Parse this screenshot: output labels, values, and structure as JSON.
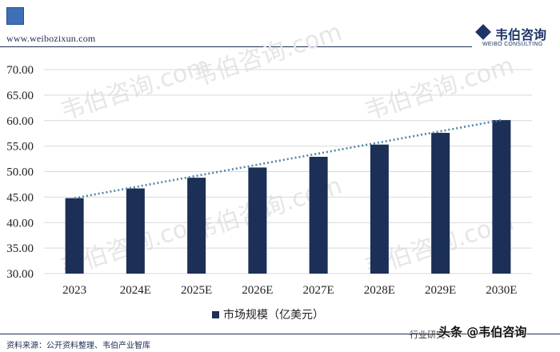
{
  "header": {
    "site_url": "www.weibozixun.com",
    "logo_cn": "韦伯咨询",
    "logo_en": "WEIBO CONSULTING",
    "accent_color": "#3f6fb8"
  },
  "watermark": "韦伯咨询.com",
  "chart_data": {
    "type": "bar",
    "categories": [
      "2023",
      "2024E",
      "2025E",
      "2026E",
      "2027E",
      "2028E",
      "2029E",
      "2030E"
    ],
    "series": [
      {
        "name": "市场规模（亿美元）",
        "values": [
          44.8,
          46.7,
          48.8,
          50.8,
          52.9,
          55.3,
          57.6,
          60.1
        ],
        "color": "#1b2f57"
      }
    ],
    "trendline": {
      "style": "dotted",
      "color": "#4f86a6",
      "from": 44.8,
      "to": 60.1
    },
    "y_ticks": [
      "30.00",
      "35.00",
      "40.00",
      "45.00",
      "50.00",
      "55.00",
      "60.00",
      "65.00",
      "70.00"
    ],
    "ylim": [
      30,
      70
    ],
    "grid": true,
    "legend_position": "bottom",
    "title": "",
    "xlabel": "",
    "ylabel": ""
  },
  "footer": {
    "source": "资料来源：公开资料整理、韦伯产业智库",
    "right_text": "行业研究",
    "overlay_text": "头条 @韦伯咨询"
  }
}
